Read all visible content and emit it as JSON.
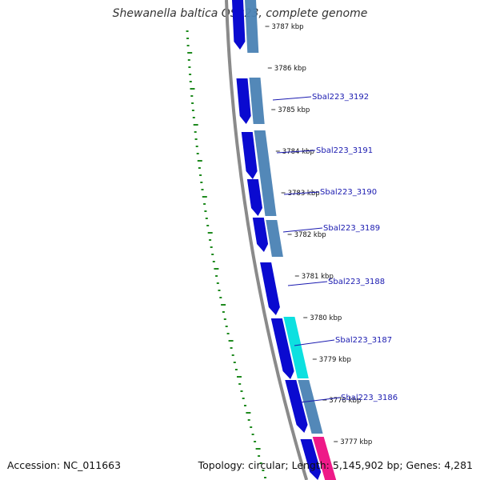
{
  "title": "Shewanella baltica OS223, complete genome",
  "accession": "Accession: NC_011663",
  "summary": "Topology: circular; Length: 5,145,902 bp; Genes: 4,281",
  "colors": {
    "forward_cds": "#0a0ad0",
    "reverse_cds": "#4a82b4",
    "highlight_cds": "#00dede",
    "rna": "#ee1a88",
    "backbone": "#8a8a8a",
    "gc_dots": "#1f8a1f",
    "gene_label": "#1a1ab0"
  },
  "ticks": [
    "3787 kbp",
    "3786 kbp",
    "3785 kbp",
    "3784 kbp",
    "3783 kbp",
    "3782 kbp",
    "3781 kbp",
    "3780 kbp",
    "3779 kbp",
    "3778 kbp",
    "3777 kbp"
  ],
  "gene_labels": [
    "Sbal223_3192",
    "Sbal223_3191",
    "Sbal223_3190",
    "Sbal223_3189",
    "Sbal223_3188",
    "Sbal223_3187",
    "Sbal223_3186"
  ]
}
